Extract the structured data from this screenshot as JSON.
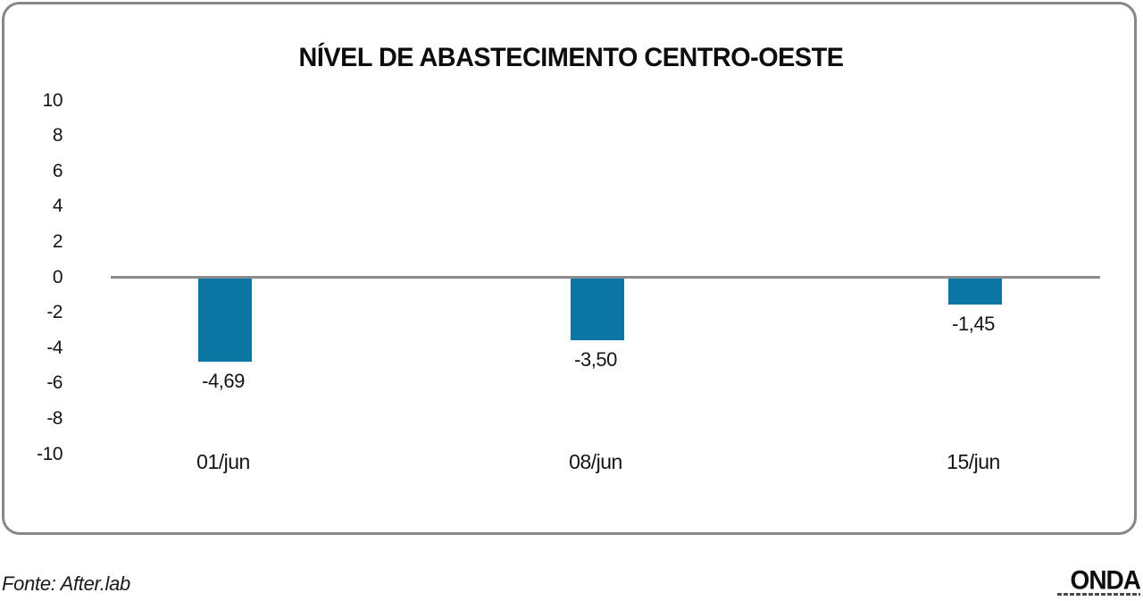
{
  "chart_data": {
    "type": "bar",
    "title": "NÍVEL DE ABASTECIMENTO CENTRO-OESTE",
    "categories": [
      "01/jun",
      "08/jun",
      "15/jun"
    ],
    "values": [
      -4.69,
      -3.5,
      -1.45
    ],
    "value_labels": [
      "-4,69",
      "-3,50",
      "-1,45"
    ],
    "xlabel": "",
    "ylabel": "",
    "ylim": [
      -10,
      10
    ],
    "ytick_step": 2,
    "ytick_labels": [
      "10",
      "8",
      "6",
      "4",
      "2",
      "0",
      "-2",
      "-4",
      "-6",
      "-8",
      "-10"
    ],
    "grid": false,
    "legend": false,
    "bar_color": "#0a76a3",
    "zero_line_color": "#8a8c90",
    "frame_border_color": "#84888e"
  },
  "footer": {
    "source": "Fonte: After.lab",
    "logo": "ONDA"
  }
}
